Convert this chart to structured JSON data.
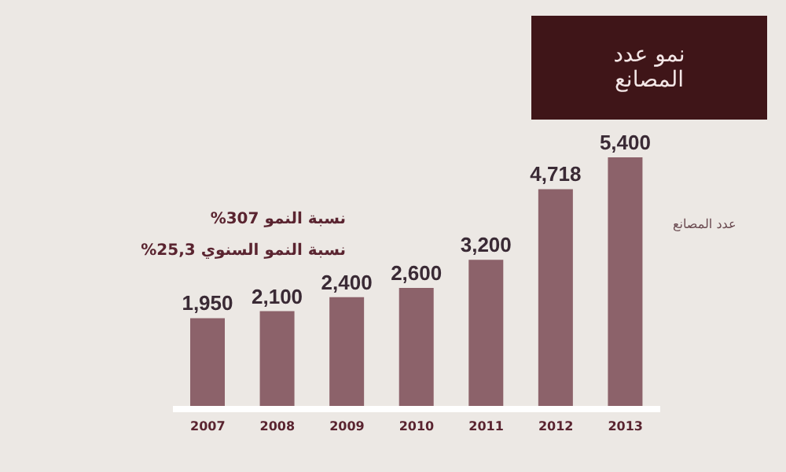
{
  "chart_data": {
    "type": "bar",
    "title": "نمو عدد المصانع",
    "categories": [
      "2007",
      "2008",
      "2009",
      "2010",
      "2011",
      "2012",
      "2013"
    ],
    "series": [
      {
        "name": "عدد المصانع",
        "color": "#8c626a",
        "values": [
          1950,
          2100,
          2400,
          2600,
          3200,
          4718,
          5400
        ],
        "value_labels": [
          "1,950",
          "2,100",
          "2,400",
          "2,600",
          "3,200",
          "4,718",
          "5,400"
        ]
      }
    ],
    "tick_labels": "x",
    "grid": false,
    "legend": false,
    "annotations": [
      "نسبة النمو 307%",
      "نسبة النمو السنوي 25,3%"
    ]
  }
}
